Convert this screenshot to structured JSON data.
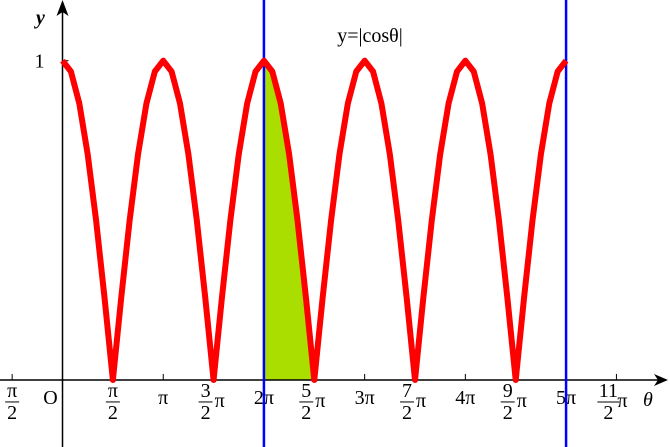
{
  "chart_data": {
    "type": "line",
    "title": "y=|cosθ|",
    "x_label": "θ",
    "y_label": "y",
    "x": [
      0,
      0.262,
      0.524,
      0.785,
      1.047,
      1.309,
      1.571,
      1.833,
      2.094,
      2.356,
      2.618,
      2.88,
      3.142,
      3.403,
      3.665,
      3.927,
      4.189,
      4.451,
      4.712,
      4.974,
      5.236,
      5.498,
      5.76,
      6.021,
      6.283,
      6.545,
      6.807,
      7.069,
      7.33,
      7.592,
      7.854,
      8.116,
      8.378,
      8.639,
      8.901,
      9.163,
      9.425,
      9.687,
      9.948,
      10.21,
      10.472,
      10.734,
      10.996,
      11.257,
      11.519,
      11.781,
      12.043,
      12.305,
      12.566,
      12.828,
      13.09,
      13.352,
      13.614,
      13.875,
      14.137,
      14.399,
      14.661,
      14.923,
      15.184,
      15.446,
      15.708
    ],
    "series": [
      {
        "color": "#ff0000",
        "values": [
          1,
          0.966,
          0.866,
          0.707,
          0.5,
          0.259,
          0,
          0.259,
          0.5,
          0.707,
          0.866,
          0.966,
          1,
          0.966,
          0.866,
          0.707,
          0.5,
          0.259,
          0,
          0.259,
          0.5,
          0.707,
          0.866,
          0.966,
          1,
          0.966,
          0.866,
          0.707,
          0.5,
          0.259,
          0,
          0.259,
          0.5,
          0.707,
          0.866,
          0.966,
          1,
          0.966,
          0.866,
          0.707,
          0.5,
          0.259,
          0,
          0.259,
          0.5,
          0.707,
          0.866,
          0.966,
          1,
          0.966,
          0.866,
          0.707,
          0.5,
          0.259,
          0,
          0.259,
          0.5,
          0.707,
          0.866,
          0.966,
          1
        ]
      }
    ],
    "xlim": [
      -1.95,
      18.95
    ],
    "ylim": [
      -0.21,
      1.19
    ],
    "xticks": [
      {
        "value": -1.571,
        "label": "-π/2"
      },
      {
        "value": 0,
        "label": "O"
      },
      {
        "value": 1.571,
        "label": "π/2"
      },
      {
        "value": 3.142,
        "label": "π"
      },
      {
        "value": 4.712,
        "label": "3/2π"
      },
      {
        "value": 6.283,
        "label": "2π"
      },
      {
        "value": 7.854,
        "label": "5/2π"
      },
      {
        "value": 9.425,
        "label": "3π"
      },
      {
        "value": 10.996,
        "label": "7/2π"
      },
      {
        "value": 12.566,
        "label": "4π"
      },
      {
        "value": 14.137,
        "label": "9/2π"
      },
      {
        "value": 15.708,
        "label": "5π"
      },
      {
        "value": 17.279,
        "label": "11/2π"
      }
    ],
    "yticks": [
      1
    ],
    "vlines": {
      "x": [
        6.283,
        15.708
      ],
      "color": "#0000ff"
    },
    "shaded": {
      "x": [
        6.283,
        7.854
      ],
      "color": "#aadd00"
    }
  }
}
